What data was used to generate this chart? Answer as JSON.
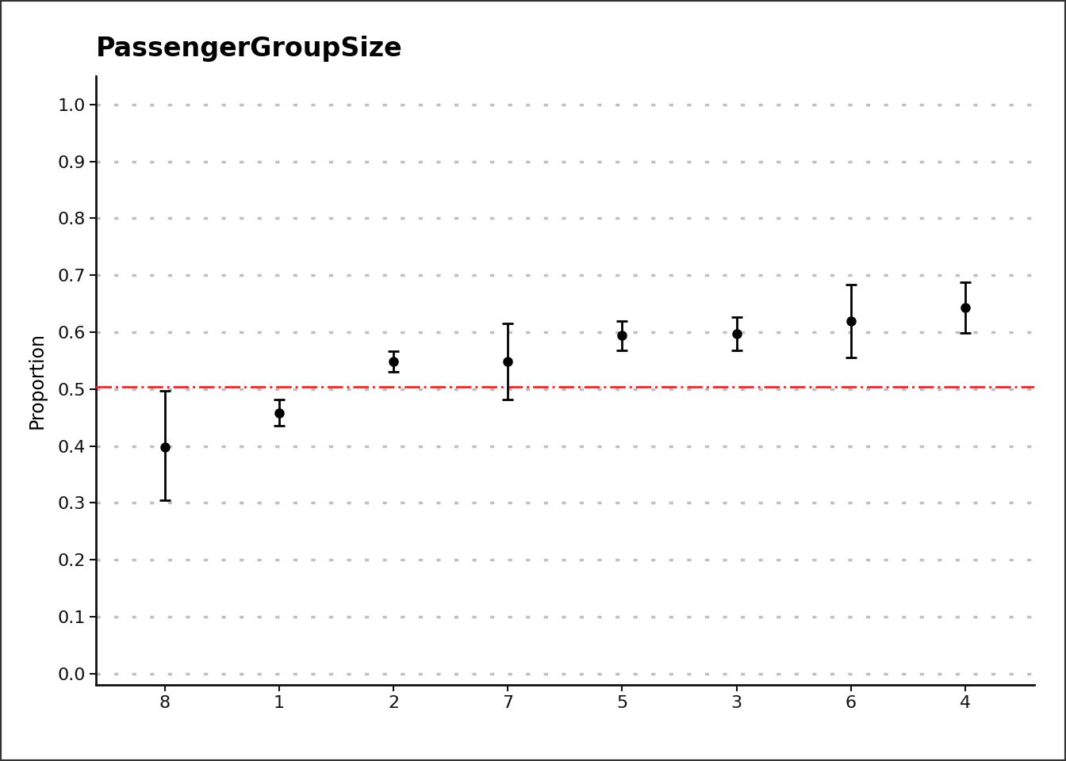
{
  "title": "PassengerGroupSize",
  "ylabel": "Proportion",
  "xlabel": "",
  "avg_line": 0.504,
  "categories": [
    "8",
    "1",
    "2",
    "7",
    "5",
    "3",
    "6",
    "4"
  ],
  "proportions": [
    0.398,
    0.458,
    0.548,
    0.548,
    0.594,
    0.597,
    0.619,
    0.643
  ],
  "ci_lower": [
    0.305,
    0.436,
    0.53,
    0.481,
    0.568,
    0.568,
    0.555,
    0.598
  ],
  "ci_upper": [
    0.497,
    0.481,
    0.567,
    0.615,
    0.62,
    0.627,
    0.684,
    0.688
  ],
  "ylim": [
    -0.02,
    1.05
  ],
  "yticks": [
    0.0,
    0.1,
    0.2,
    0.3,
    0.4,
    0.5,
    0.6,
    0.7,
    0.8,
    0.9,
    1.0
  ],
  "background_color": "#ffffff",
  "grid_color": "#c0c0c0",
  "point_color": "#000000",
  "line_color": "#ee3333",
  "border_color": "#222222",
  "title_fontsize": 24,
  "label_fontsize": 17,
  "tick_fontsize": 16
}
